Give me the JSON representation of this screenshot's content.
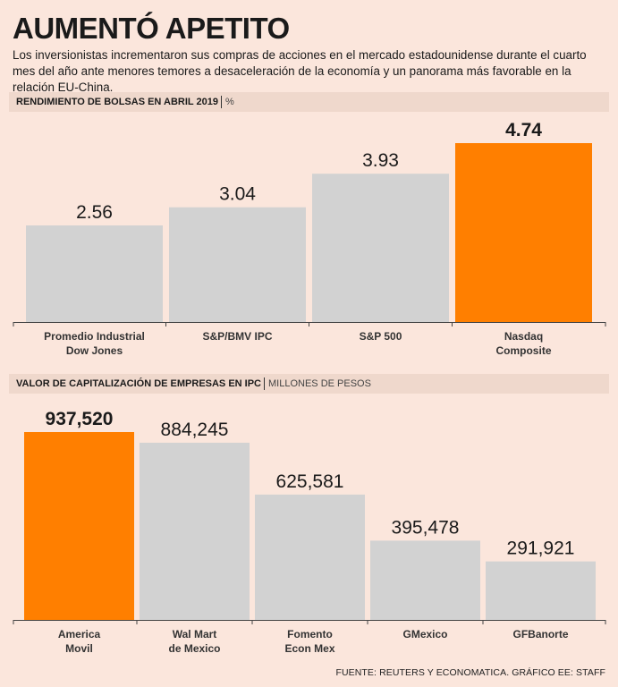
{
  "title": "AUMENTÓ APETITO",
  "subtitle": "Los inversionistas incrementaron sus compras de acciones en el mercado estadounidense durante el cuarto mes del año ante menores temores a desaceleración de la economía y un panorama más favorable en la relación EU-China.",
  "footer": "FUENTE: REUTERS Y ECONOMATICA. GRÁFICO EE: STAFF",
  "colors": {
    "bar": "#d2d2d2",
    "highlight": "#ff7f00",
    "axis": "#444444"
  },
  "chart_data": [
    {
      "type": "bar",
      "title": "RENDIMIENTO DE BOLSAS EN ABRIL 2019",
      "unit": "%",
      "categories": [
        [
          "Promedio Industrial",
          "Dow Jones"
        ],
        [
          "S&P/BMV IPC"
        ],
        [
          "S&P 500"
        ],
        [
          "Nasdaq",
          "Composite"
        ]
      ],
      "values": [
        2.56,
        3.04,
        3.93,
        4.74
      ],
      "labels": [
        "2.56",
        "3.04",
        "3.93",
        "4.74"
      ],
      "highlight_index": 3,
      "ylim": [
        0,
        4.74
      ]
    },
    {
      "type": "bar",
      "title": "VALOR DE CAPITALIZACIÓN DE EMPRESAS EN IPC",
      "unit": "MILLONES DE PESOS",
      "categories": [
        [
          "America",
          "Movil"
        ],
        [
          "Wal Mart",
          "de Mexico"
        ],
        [
          "Fomento",
          "Econ Mex"
        ],
        [
          "GMexico"
        ],
        [
          "GFBanorte"
        ]
      ],
      "values": [
        937520,
        884245,
        625581,
        395478,
        291921
      ],
      "labels": [
        "937,520",
        "884,245",
        "625,581",
        "395,478",
        "291,921"
      ],
      "highlight_index": 0,
      "ylim": [
        0,
        937520
      ]
    }
  ]
}
